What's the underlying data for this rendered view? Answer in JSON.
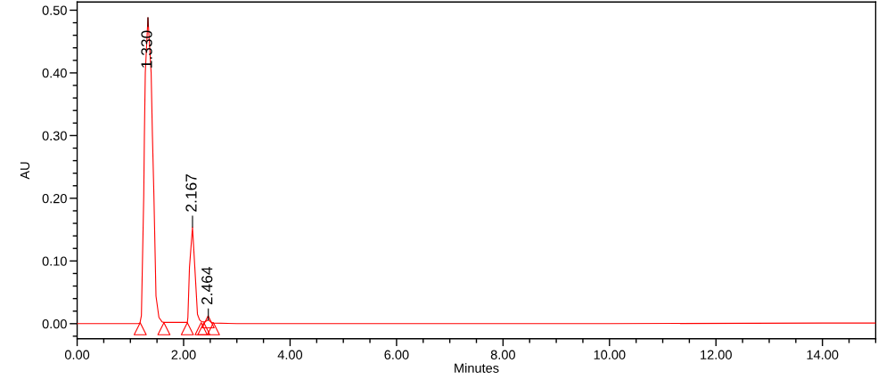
{
  "chart_data": {
    "type": "line",
    "xlabel": "Minutes",
    "ylabel": "AU",
    "xlim": [
      0,
      15
    ],
    "ylim": [
      -0.024,
      0.513
    ],
    "xticks": [
      {
        "value": 0,
        "label": "0.00"
      },
      {
        "value": 0.5,
        "label": null
      },
      {
        "value": 1,
        "label": null
      },
      {
        "value": 1.5,
        "label": null
      },
      {
        "value": 2,
        "label": "2.00"
      },
      {
        "value": 2.5,
        "label": null
      },
      {
        "value": 3,
        "label": null
      },
      {
        "value": 3.5,
        "label": null
      },
      {
        "value": 4,
        "label": "4.00"
      },
      {
        "value": 4.5,
        "label": null
      },
      {
        "value": 5,
        "label": null
      },
      {
        "value": 5.5,
        "label": null
      },
      {
        "value": 6,
        "label": "6.00"
      },
      {
        "value": 6.5,
        "label": null
      },
      {
        "value": 7,
        "label": null
      },
      {
        "value": 7.5,
        "label": null
      },
      {
        "value": 8,
        "label": "8.00"
      },
      {
        "value": 8.5,
        "label": null
      },
      {
        "value": 9,
        "label": null
      },
      {
        "value": 9.5,
        "label": null
      },
      {
        "value": 10,
        "label": "10.00"
      },
      {
        "value": 10.5,
        "label": null
      },
      {
        "value": 11,
        "label": null
      },
      {
        "value": 11.5,
        "label": null
      },
      {
        "value": 12,
        "label": "12.00"
      },
      {
        "value": 12.5,
        "label": null
      },
      {
        "value": 13,
        "label": null
      },
      {
        "value": 13.5,
        "label": null
      },
      {
        "value": 14,
        "label": "14.00"
      },
      {
        "value": 14.5,
        "label": null
      },
      {
        "value": 15,
        "label": null
      }
    ],
    "yticks": [
      {
        "value": -0.02,
        "label": null
      },
      {
        "value": 0,
        "label": "0.00"
      },
      {
        "value": 0.02,
        "label": null
      },
      {
        "value": 0.04,
        "label": null
      },
      {
        "value": 0.06,
        "label": null
      },
      {
        "value": 0.08,
        "label": null
      },
      {
        "value": 0.1,
        "label": "0.10"
      },
      {
        "value": 0.12,
        "label": null
      },
      {
        "value": 0.14,
        "label": null
      },
      {
        "value": 0.16,
        "label": null
      },
      {
        "value": 0.18,
        "label": null
      },
      {
        "value": 0.2,
        "label": "0.20"
      },
      {
        "value": 0.22,
        "label": null
      },
      {
        "value": 0.24,
        "label": null
      },
      {
        "value": 0.26,
        "label": null
      },
      {
        "value": 0.28,
        "label": null
      },
      {
        "value": 0.3,
        "label": "0.30"
      },
      {
        "value": 0.32,
        "label": null
      },
      {
        "value": 0.34,
        "label": null
      },
      {
        "value": 0.36,
        "label": null
      },
      {
        "value": 0.38,
        "label": null
      },
      {
        "value": 0.4,
        "label": "0.40"
      },
      {
        "value": 0.42,
        "label": null
      },
      {
        "value": 0.44,
        "label": null
      },
      {
        "value": 0.46,
        "label": null
      },
      {
        "value": 0.48,
        "label": null
      },
      {
        "value": 0.5,
        "label": "0.50"
      }
    ],
    "series": [
      {
        "color": "#ff0000",
        "marker": "none",
        "line_style": "solid",
        "x": [
          0,
          0.5,
          1.0,
          1.15,
          1.18,
          1.207,
          1.251,
          1.263,
          1.28,
          1.33,
          1.39,
          1.414,
          1.442,
          1.481,
          1.536,
          1.593,
          1.63,
          1.8,
          2.0,
          2.07,
          2.08,
          2.11,
          2.167,
          2.21,
          2.26,
          2.3,
          2.34,
          2.4,
          2.464,
          2.52,
          2.56,
          3.0,
          4.5,
          7.0,
          10.0,
          14.0,
          15.0
        ],
        "values": [
          0,
          0,
          0,
          0,
          0.001,
          0.013,
          0.204,
          0.3,
          0.4,
          0.488,
          0.4,
          0.3,
          0.204,
          0.044,
          0.01,
          0.003,
          0.002,
          0.002,
          0.002,
          0.002,
          0.01,
          0.09,
          0.154,
          0.09,
          0.015,
          0.006,
          0.003,
          0.003,
          0.006,
          0.002,
          0.001,
          0,
          0,
          0,
          0,
          0.001,
          0.001
        ]
      },
      {
        "type": "scatter",
        "color": "#ff0000",
        "marker": "triangle",
        "x": [
          1.184,
          1.63,
          2.07,
          2.33,
          2.38,
          2.46,
          2.56
        ],
        "values": [
          -0.008,
          -0.008,
          -0.008,
          -0.008,
          -0.008,
          0.003,
          -0.008
        ]
      }
    ],
    "annotations": [
      {
        "text": "1.330",
        "x": 1.33,
        "y": 0.488
      },
      {
        "text": "2.167",
        "x": 2.167,
        "y": 0.154
      },
      {
        "text": "2.464",
        "x": 2.464,
        "y": 0.006
      }
    ]
  }
}
